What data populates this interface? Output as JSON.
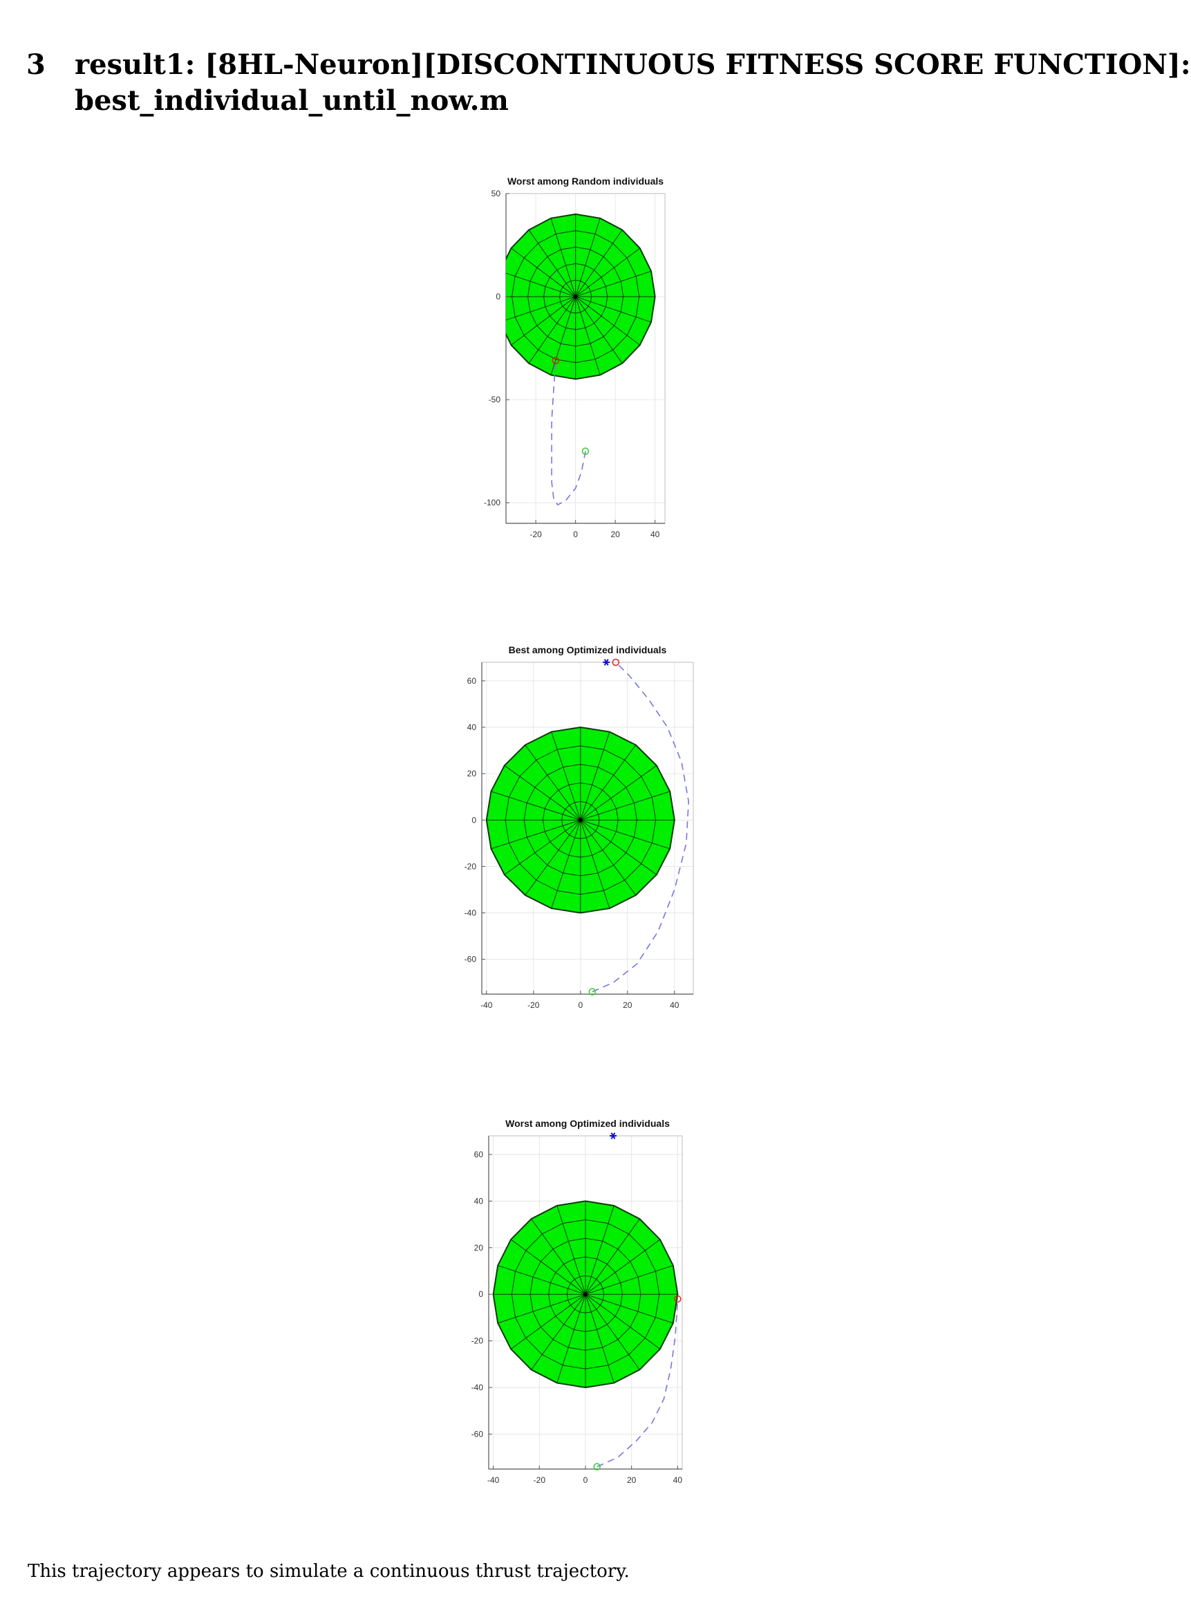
{
  "section": {
    "number": "3",
    "title_line1": "result1: [8HL-Neuron][DISCONTINUOUS FITNESS SCORE FUNCTION]:",
    "title_line2": "best_individual_until_now.m"
  },
  "caption": "This trajectory appears to simulate a continuous thrust trajectory.",
  "colors": {
    "sphere_fill": "#00ee00",
    "mesh": "#0a3a0a",
    "trajectory": "#7777dd",
    "start_marker": "#33cc33",
    "end_marker": "#dd2222",
    "target_marker": "#1111cc"
  },
  "chart_data": [
    {
      "type": "scatter",
      "title": "Worst among Random individuals",
      "xlabel": "",
      "ylabel": "",
      "xlim": [
        -35,
        45
      ],
      "ylim": [
        -110,
        50
      ],
      "xticks": [
        "-20",
        "0",
        "20",
        "40"
      ],
      "yticks": [
        "50",
        "0",
        "-50",
        "-100"
      ],
      "xtick_values": [
        -20,
        0,
        20,
        40
      ],
      "ytick_values": [
        50,
        0,
        -50,
        -100
      ],
      "grid": true,
      "sphere": {
        "center": [
          0,
          0
        ],
        "radius": 40
      },
      "trajectory": [
        [
          5,
          -75
        ],
        [
          3,
          -85
        ],
        [
          0,
          -93
        ],
        [
          -5,
          -99
        ],
        [
          -9,
          -101
        ],
        [
          -11,
          -98
        ],
        [
          -12,
          -90
        ],
        [
          -12,
          -75
        ],
        [
          -12,
          -60
        ],
        [
          -11,
          -45
        ],
        [
          -10,
          -31
        ]
      ],
      "markers": [
        {
          "kind": "start",
          "x": 5,
          "y": -75
        },
        {
          "kind": "end",
          "x": -10,
          "y": -31
        }
      ]
    },
    {
      "type": "scatter",
      "title": "Best among Optimized  individuals",
      "xlabel": "",
      "ylabel": "",
      "xlim": [
        -42,
        48
      ],
      "ylim": [
        -75,
        68
      ],
      "xticks": [
        "-40",
        "-20",
        "0",
        "20",
        "40"
      ],
      "yticks": [
        "60",
        "40",
        "20",
        "0",
        "-20",
        "-40",
        "-60"
      ],
      "xtick_values": [
        -40,
        -20,
        0,
        20,
        40
      ],
      "ytick_values": [
        60,
        40,
        20,
        0,
        -20,
        -40,
        -60
      ],
      "grid": true,
      "sphere": {
        "center": [
          0,
          0
        ],
        "radius": 40
      },
      "trajectory": [
        [
          5,
          -74
        ],
        [
          14,
          -70
        ],
        [
          24,
          -62
        ],
        [
          33,
          -48
        ],
        [
          40,
          -30
        ],
        [
          45,
          -10
        ],
        [
          46,
          8
        ],
        [
          43,
          25
        ],
        [
          37,
          40
        ],
        [
          29,
          52
        ],
        [
          21,
          62
        ],
        [
          15,
          68
        ]
      ],
      "markers": [
        {
          "kind": "start",
          "x": 5,
          "y": -74
        },
        {
          "kind": "end",
          "x": 15,
          "y": 68
        },
        {
          "kind": "target",
          "x": 11,
          "y": 68
        }
      ]
    },
    {
      "type": "scatter",
      "title": "Worst among Optimized individuals",
      "xlabel": "",
      "ylabel": "",
      "xlim": [
        -42,
        42
      ],
      "ylim": [
        -75,
        68
      ],
      "xticks": [
        "-40",
        "-20",
        "0",
        "20",
        "40"
      ],
      "yticks": [
        "60",
        "40",
        "20",
        "0",
        "-20",
        "-40",
        "-60"
      ],
      "xtick_values": [
        -40,
        -20,
        0,
        20,
        40
      ],
      "ytick_values": [
        60,
        40,
        20,
        0,
        -20,
        -40,
        -60
      ],
      "grid": true,
      "sphere": {
        "center": [
          0,
          0
        ],
        "radius": 40
      },
      "trajectory": [
        [
          5,
          -74
        ],
        [
          14,
          -70
        ],
        [
          22,
          -63
        ],
        [
          29,
          -55
        ],
        [
          34,
          -45
        ],
        [
          37,
          -32
        ],
        [
          39,
          -18
        ],
        [
          40,
          -2
        ]
      ],
      "markers": [
        {
          "kind": "start",
          "x": 5,
          "y": -74
        },
        {
          "kind": "end",
          "x": 40,
          "y": -2
        },
        {
          "kind": "target",
          "x": 12,
          "y": 68
        }
      ]
    }
  ]
}
